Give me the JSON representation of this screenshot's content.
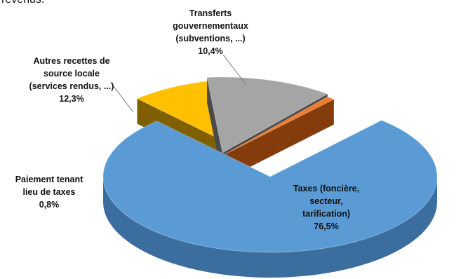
{
  "page": {
    "top_text_fragment": "revenus."
  },
  "chart_data": {
    "type": "pie",
    "title": "",
    "slices": [
      {
        "label_lines": [
          "Taxes (foncière,",
          "secteur,",
          "tarification)"
        ],
        "value": 76.5,
        "value_text": "76,5%",
        "color": "#5b9bd5",
        "side_color": "#3b6e9e"
      },
      {
        "label_lines": [
          "Transferts",
          "gouvernementaux",
          "(subventions, ...)"
        ],
        "value": 10.4,
        "value_text": "10,4%",
        "color": "#ffc000",
        "side_color": "#7f5f00"
      },
      {
        "label_lines": [
          "Autres recettes de",
          "source locale",
          "(services rendus, ...)"
        ],
        "value": 12.3,
        "value_text": "12,3%",
        "color": "#a5a5a5",
        "side_color": "#4a4a4a"
      },
      {
        "label_lines": [
          "Paiement tenant",
          "lieu de taxes"
        ],
        "value": 0.8,
        "value_text": "0,8%",
        "color": "#ed7d31",
        "side_color": "#843c0c"
      }
    ]
  }
}
